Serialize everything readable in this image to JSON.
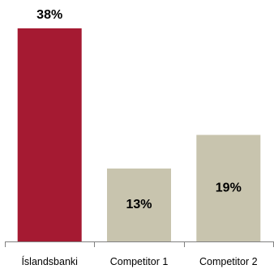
{
  "chart_data": {
    "type": "bar",
    "categories": [
      "Íslandsbanki",
      "Competitor 1",
      "Competitor 2"
    ],
    "values": [
      38,
      13,
      19
    ],
    "data_labels": [
      "38%",
      "13%",
      "19%"
    ],
    "ylim": [
      0,
      38
    ],
    "grid": false,
    "legend": "none",
    "colors": [
      "#A51A32",
      "#C8C4AE",
      "#C8C4AE"
    ],
    "label_placement": [
      "above",
      "inside",
      "inside"
    ]
  }
}
